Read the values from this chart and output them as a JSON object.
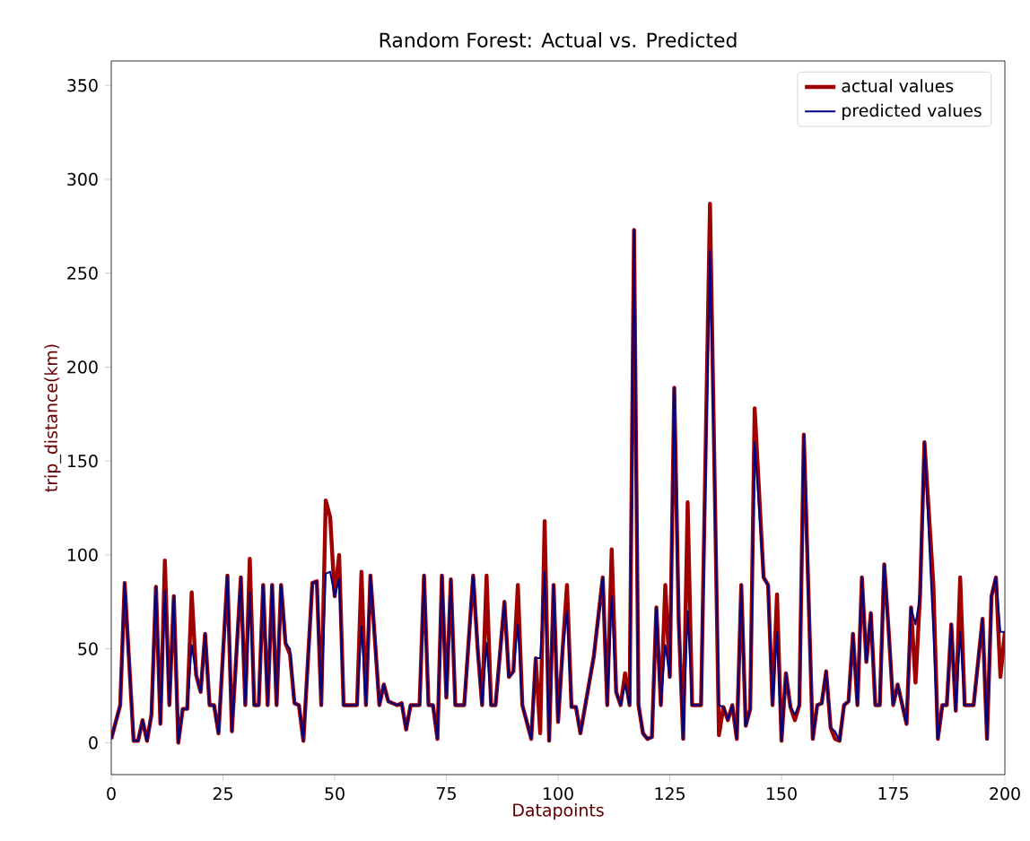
{
  "chart_data": {
    "type": "line",
    "title": "Random Forest: Actual vs. Predicted",
    "xlabel": "Datapoints",
    "ylabel": "trip_distance(km)",
    "x": [
      0,
      2,
      3,
      5,
      6,
      7,
      8,
      9,
      10,
      11,
      12,
      13,
      14,
      15,
      16,
      17,
      18,
      19,
      20,
      21,
      22,
      23,
      24,
      26,
      27,
      29,
      30,
      31,
      32,
      33,
      34,
      35,
      36,
      37,
      38,
      39,
      40,
      41,
      42,
      43,
      45,
      46,
      47,
      48,
      49,
      50,
      51,
      52,
      54,
      55,
      56,
      57,
      58,
      59,
      60,
      61,
      62,
      64,
      65,
      66,
      67,
      69,
      70,
      71,
      72,
      73,
      74,
      75,
      76,
      77,
      79,
      81,
      82,
      83,
      84,
      85,
      86,
      88,
      89,
      90,
      91,
      92,
      94,
      95,
      96,
      97,
      98,
      99,
      100,
      101,
      102,
      103,
      104,
      105,
      108,
      110,
      111,
      112,
      113,
      114,
      115,
      116,
      117,
      118,
      119,
      120,
      121,
      122,
      123,
      124,
      125,
      126,
      127,
      128,
      129,
      130,
      132,
      134,
      136,
      137,
      138,
      139,
      140,
      141,
      142,
      143,
      144,
      146,
      147,
      148,
      149,
      150,
      151,
      152,
      153,
      154,
      155,
      157,
      158,
      159,
      160,
      161,
      162,
      163,
      164,
      165,
      166,
      167,
      168,
      169,
      170,
      171,
      172,
      173,
      174,
      175,
      176,
      178,
      179,
      180,
      181,
      182,
      184,
      185,
      186,
      187,
      188,
      189,
      190,
      191,
      193,
      195,
      196,
      197,
      198,
      199,
      200
    ],
    "series": [
      {
        "name": "actual values",
        "color": "#a00000",
        "values": [
          2,
          20,
          85,
          1,
          1,
          12,
          1,
          15,
          83,
          10,
          97,
          20,
          78,
          0,
          18,
          18,
          80,
          36,
          27,
          58,
          20,
          20,
          5,
          89,
          6,
          88,
          20,
          98,
          20,
          20,
          84,
          20,
          84,
          20,
          84,
          53,
          47,
          21,
          20,
          1,
          85,
          86,
          20,
          129,
          120,
          78,
          100,
          20,
          20,
          20,
          91,
          20,
          89,
          55,
          20,
          31,
          22,
          20,
          21,
          7,
          20,
          20,
          89,
          20,
          20,
          2,
          89,
          24,
          87,
          20,
          20,
          89,
          50,
          20,
          89,
          20,
          20,
          75,
          35,
          38,
          84,
          20,
          2,
          45,
          5,
          118,
          1,
          84,
          11,
          49,
          84,
          19,
          19,
          5,
          46,
          88,
          20,
          103,
          27,
          20,
          37,
          20,
          273,
          20,
          5,
          2,
          3,
          72,
          20,
          84,
          35,
          189,
          65,
          2,
          128,
          20,
          20,
          287,
          4,
          19,
          12,
          20,
          2,
          84,
          9,
          18,
          178,
          88,
          84,
          20,
          79,
          1,
          37,
          19,
          12,
          20,
          164,
          2,
          20,
          21,
          38,
          8,
          2,
          1,
          20,
          22,
          58,
          20,
          88,
          43,
          69,
          20,
          20,
          95,
          59,
          20,
          31,
          10,
          72,
          32,
          78,
          160,
          84,
          2,
          20,
          20,
          63,
          17,
          88,
          20,
          20,
          66,
          2,
          78,
          88,
          35,
          59
        ]
      },
      {
        "name": "predicted values",
        "color": "#000080",
        "values": [
          2,
          20,
          85,
          1,
          1,
          12,
          1,
          15,
          83,
          10,
          81,
          20,
          78,
          0,
          18,
          18,
          52,
          36,
          27,
          58,
          20,
          20,
          5,
          89,
          6,
          88,
          20,
          80,
          20,
          20,
          84,
          20,
          84,
          20,
          84,
          53,
          50,
          21,
          20,
          1,
          85,
          86,
          20,
          90,
          91,
          78,
          87,
          20,
          20,
          20,
          62,
          20,
          89,
          55,
          20,
          31,
          22,
          20,
          21,
          7,
          20,
          20,
          89,
          20,
          20,
          2,
          89,
          24,
          87,
          20,
          20,
          89,
          50,
          20,
          53,
          20,
          20,
          75,
          35,
          38,
          63,
          20,
          2,
          45,
          45,
          91,
          1,
          84,
          11,
          49,
          70,
          19,
          19,
          5,
          46,
          88,
          20,
          78,
          27,
          20,
          31,
          20,
          273,
          20,
          5,
          2,
          3,
          72,
          20,
          52,
          35,
          189,
          65,
          2,
          70,
          20,
          20,
          262,
          20,
          19,
          12,
          20,
          2,
          84,
          9,
          18,
          160,
          88,
          84,
          20,
          59,
          1,
          37,
          19,
          15,
          20,
          164,
          2,
          20,
          21,
          38,
          8,
          6,
          1,
          20,
          22,
          58,
          20,
          88,
          43,
          69,
          20,
          20,
          95,
          59,
          20,
          31,
          10,
          72,
          63,
          78,
          160,
          59,
          2,
          20,
          20,
          63,
          17,
          59,
          20,
          20,
          66,
          2,
          78,
          88,
          59,
          59
        ]
      }
    ],
    "xlim": [
      0,
      200
    ],
    "ylim": [
      -17,
      363
    ],
    "xticks": [
      0,
      25,
      50,
      75,
      100,
      125,
      150,
      175,
      200
    ],
    "yticks": [
      0,
      50,
      100,
      150,
      200,
      250,
      300,
      350
    ],
    "legend": "top right",
    "grid": false,
    "marker": "none",
    "line_style": "solid"
  }
}
